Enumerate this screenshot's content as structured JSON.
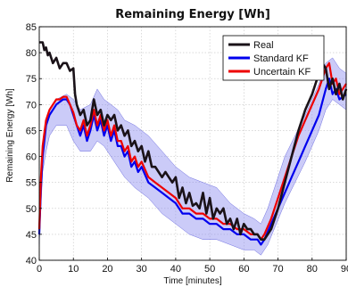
{
  "chart_data": {
    "type": "line",
    "title": "Remaining Energy [Wh]",
    "xlabel": "Time [minutes]",
    "ylabel": "Remaining Energy [Wh]",
    "xlim": [
      0,
      90
    ],
    "ylim": [
      40,
      85
    ],
    "xticks": [
      "0",
      "10",
      "20",
      "30",
      "40",
      "50",
      "60",
      "70",
      "80",
      "90"
    ],
    "yticks": [
      "40",
      "45",
      "50",
      "55",
      "60",
      "65",
      "70",
      "75",
      "80",
      "85"
    ],
    "grid": true,
    "legend_position": "top-right",
    "legend": [
      "Real",
      "Standard KF",
      "Uncertain KF"
    ],
    "band": {
      "color": "#8c8cf0",
      "x": [
        0,
        1,
        2,
        3,
        5,
        8,
        10,
        12,
        15,
        17,
        19,
        21,
        23,
        25,
        28,
        32,
        36,
        40,
        44,
        48,
        52,
        56,
        60,
        63,
        65,
        67,
        72,
        78,
        82,
        84,
        86,
        88,
        90
      ],
      "upper": [
        47,
        62,
        66,
        69,
        71,
        72,
        71,
        69,
        70,
        73,
        71,
        70,
        69,
        67,
        66,
        64,
        61,
        58,
        56,
        55,
        54,
        51,
        49,
        48,
        47,
        50,
        60,
        68,
        74,
        78,
        79,
        77,
        76
      ],
      "lower": [
        43,
        57,
        61,
        64,
        66,
        66,
        63,
        61,
        61,
        63,
        62,
        60,
        58,
        56,
        54,
        52,
        49,
        47,
        45,
        44,
        44,
        43,
        42,
        42,
        41,
        43,
        51,
        59,
        65,
        69,
        71,
        70,
        69
      ]
    },
    "series": [
      {
        "name": "Real",
        "color": "#1a1218",
        "x": [
          0,
          1,
          1.5,
          2,
          2.5,
          3,
          4,
          5,
          6,
          7,
          8,
          9,
          10,
          10.5,
          11,
          12,
          13,
          14,
          15,
          16,
          17,
          18,
          19,
          20,
          21,
          22,
          23,
          24,
          25,
          26,
          27,
          28,
          29,
          30,
          31,
          32,
          33,
          34,
          35,
          36,
          37,
          38,
          39,
          40,
          41,
          42,
          43,
          44,
          45,
          46,
          47,
          48,
          49,
          50,
          51,
          52,
          53,
          54,
          55,
          56,
          57,
          58,
          59,
          60,
          61,
          62,
          63,
          64,
          65,
          66,
          67,
          68,
          70,
          72,
          74,
          76,
          78,
          80,
          82,
          83,
          84,
          85,
          86,
          87,
          88,
          89,
          90
        ],
        "y": [
          82,
          82,
          80.5,
          81,
          79.5,
          80,
          78,
          79,
          77,
          78,
          78,
          76.5,
          77,
          72,
          70,
          68,
          69,
          66,
          67,
          71,
          68,
          69,
          66,
          68,
          67,
          68,
          65,
          66,
          64,
          65,
          62,
          63,
          61,
          62,
          59,
          61,
          58,
          58,
          57,
          56,
          57,
          56,
          55,
          56,
          52,
          54,
          51,
          53,
          50.5,
          51,
          50,
          53,
          49,
          52,
          48,
          50,
          49,
          50,
          47,
          48,
          46,
          48,
          45,
          47,
          46,
          46,
          45,
          45,
          44,
          44,
          45,
          46,
          50,
          55,
          60,
          65,
          69,
          72,
          76,
          78,
          77,
          73,
          75,
          72,
          74,
          71,
          73
        ]
      },
      {
        "name": "Standard KF",
        "color": "#0000ee",
        "x": [
          0,
          0.5,
          1,
          2,
          3,
          4,
          5,
          6,
          7,
          8,
          9,
          10,
          11,
          12,
          13,
          14,
          15,
          16,
          17,
          18,
          19,
          20,
          21,
          22,
          23,
          24,
          25,
          26,
          27,
          28,
          29,
          30,
          32,
          34,
          36,
          38,
          40,
          42,
          44,
          46,
          48,
          50,
          52,
          54,
          56,
          58,
          60,
          62,
          64,
          65,
          66,
          68,
          70,
          72,
          74,
          76,
          78,
          80,
          82,
          84,
          85,
          86,
          87,
          88,
          90
        ],
        "y": [
          45,
          54,
          60,
          66,
          68,
          69,
          70,
          70.5,
          71,
          71,
          70,
          68,
          66,
          64,
          66,
          63,
          65,
          68,
          65,
          67,
          64,
          66,
          63,
          65,
          62,
          62,
          60,
          61,
          58,
          59,
          57,
          58,
          55,
          54,
          53,
          52,
          51,
          49,
          49,
          48,
          48,
          47,
          47,
          46,
          46,
          45,
          45,
          44,
          44,
          43,
          44,
          47,
          50,
          53,
          56,
          59,
          62,
          65,
          68,
          73,
          75,
          72,
          73,
          71,
          72
        ]
      },
      {
        "name": "Uncertain KF",
        "color": "#ee0000",
        "x": [
          0,
          0.5,
          1,
          2,
          3,
          4,
          5,
          6,
          7,
          8,
          9,
          10,
          11,
          12,
          13,
          14,
          15,
          16,
          17,
          18,
          19,
          20,
          21,
          22,
          23,
          24,
          25,
          26,
          27,
          28,
          29,
          30,
          32,
          34,
          36,
          38,
          40,
          42,
          44,
          46,
          48,
          50,
          52,
          54,
          56,
          58,
          60,
          62,
          64,
          65,
          66,
          68,
          70,
          72,
          74,
          76,
          78,
          80,
          82,
          84,
          85,
          86,
          87,
          88,
          90
        ],
        "y": [
          46,
          56,
          62,
          67,
          69,
          70,
          71,
          71,
          71.5,
          71.5,
          70,
          68.5,
          66,
          65,
          67,
          64,
          66,
          69,
          66,
          68,
          65,
          67,
          64,
          66,
          63,
          63,
          61,
          62,
          59,
          60,
          58,
          59,
          56,
          55,
          54,
          53,
          52,
          50,
          50,
          49,
          49,
          48,
          48,
          47,
          47,
          46,
          46,
          45,
          45,
          44,
          45,
          48,
          52,
          56,
          60,
          64,
          67,
          70,
          73,
          77,
          78,
          74,
          75,
          72,
          74
        ]
      }
    ]
  }
}
